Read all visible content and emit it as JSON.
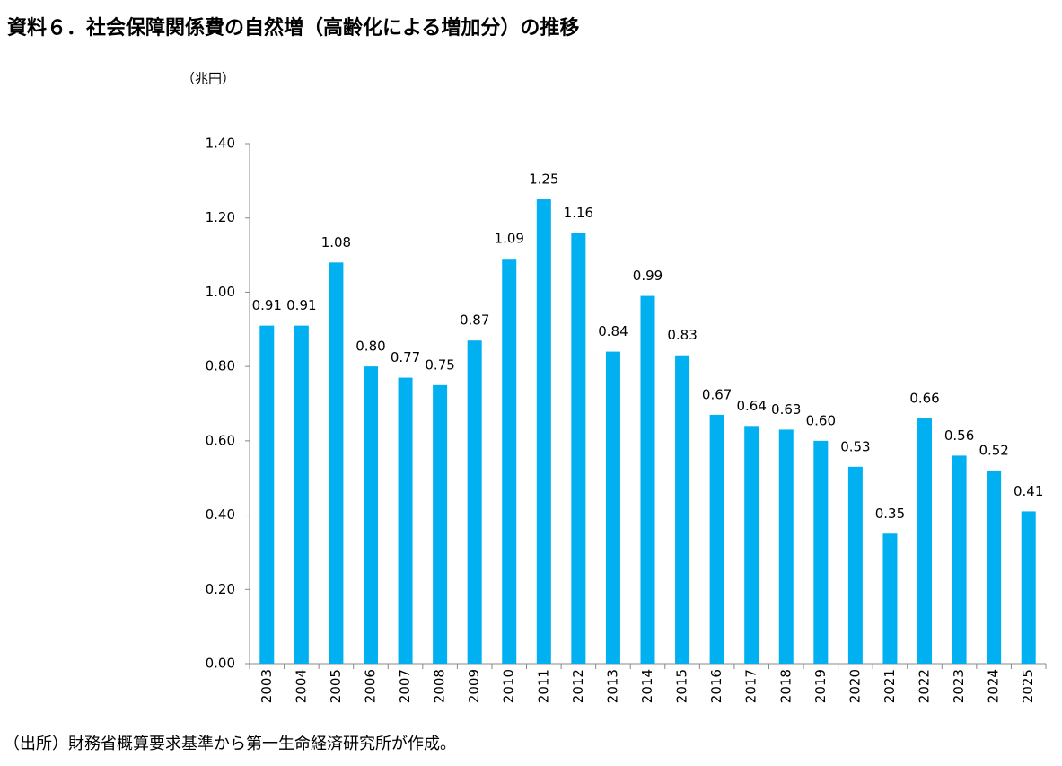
{
  "chart_data": {
    "type": "bar",
    "title": "資料６．社会保障関係費の自然増（高齢化による増加分）の推移",
    "y_axis_label": "（兆円）",
    "note": "（出所）財務省概算要求基準から第一生命経済研究所が作成。",
    "categories": [
      "2003",
      "2004",
      "2005",
      "2006",
      "2007",
      "2008",
      "2009",
      "2010",
      "2011",
      "2012",
      "2013",
      "2014",
      "2015",
      "2016",
      "2017",
      "2018",
      "2019",
      "2020",
      "2021",
      "2022",
      "2023",
      "2024",
      "2025"
    ],
    "values": [
      0.91,
      0.91,
      1.08,
      0.8,
      0.77,
      0.75,
      0.87,
      1.09,
      1.25,
      1.16,
      0.84,
      0.99,
      0.83,
      0.67,
      0.64,
      0.63,
      0.6,
      0.53,
      0.35,
      0.66,
      0.56,
      0.52,
      0.41
    ],
    "value_labels": [
      "0.91",
      "0.91",
      "1.08",
      "0.80",
      "0.77",
      "0.75",
      "0.87",
      "1.09",
      "1.25",
      "1.16",
      "0.84",
      "0.99",
      "0.83",
      "0.67",
      "0.64",
      "0.63",
      "0.60",
      "0.53",
      "0.35",
      "0.66",
      "0.56",
      "0.52",
      "0.41"
    ],
    "color": "#00b0f0",
    "ylim": [
      0,
      1.4
    ],
    "yticks": [
      {
        "value": 0,
        "label": "0.00"
      },
      {
        "value": 0.2,
        "label": "0.20"
      },
      {
        "value": 0.4,
        "label": "0.40"
      },
      {
        "value": 0.6,
        "label": "0.60"
      },
      {
        "value": 0.8,
        "label": "0.80"
      },
      {
        "value": 1,
        "label": "1.00"
      },
      {
        "value": 1.2,
        "label": "1.20"
      },
      {
        "value": 1.4,
        "label": "1.40"
      }
    ],
    "grid": false
  }
}
